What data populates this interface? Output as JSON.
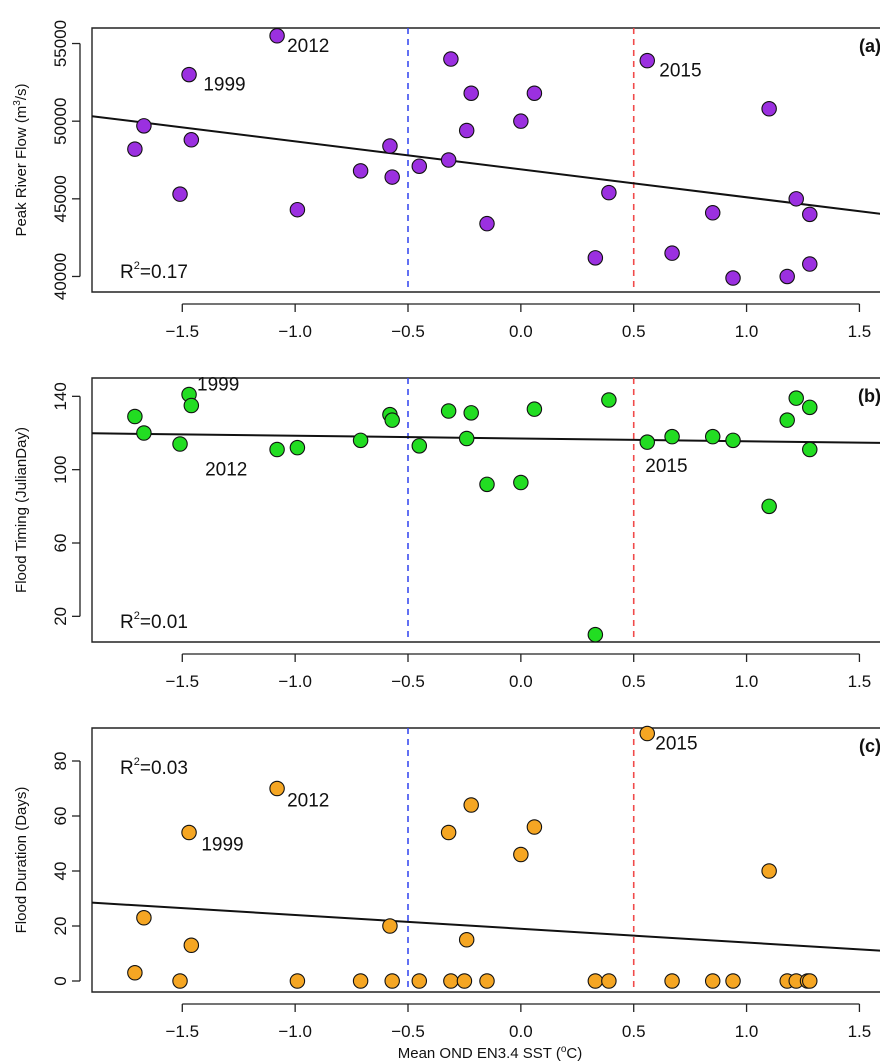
{
  "figure": {
    "xlabel_prefix": "Mean OND EN3.4 SST (",
    "xlabel_sup": "o",
    "xlabel_suffix": "C)"
  },
  "chart_data": [
    {
      "type": "scatter",
      "panel_label": "(a)",
      "ylabel_prefix": "Peak River Flow (m",
      "ylabel_sup": "3",
      "ylabel_suffix": "/s)",
      "xlim": [
        -1.9,
        1.6
      ],
      "ylim": [
        39000,
        56000
      ],
      "xticks": [
        -1.5,
        -1.0,
        -0.5,
        0.0,
        0.5,
        1.0,
        1.5
      ],
      "xtick_labels": [
        "−1.5",
        "−1.0",
        "−0.5",
        "0.0",
        "0.5",
        "1.0",
        "1.5"
      ],
      "yticks": [
        40000,
        45000,
        50000,
        55000
      ],
      "ytick_labels": [
        "40000",
        "45000",
        "50000",
        "55000"
      ],
      "point_color": "#9b30e0",
      "x": [
        -1.71,
        -1.67,
        -1.51,
        -1.47,
        -1.46,
        -1.08,
        -0.99,
        -0.71,
        -0.58,
        -0.57,
        -0.45,
        -0.32,
        -0.31,
        -0.24,
        -0.22,
        -0.15,
        0.0,
        0.06,
        0.33,
        0.39,
        0.56,
        0.67,
        0.85,
        0.94,
        1.1,
        1.18,
        1.22,
        1.28,
        1.28
      ],
      "y": [
        48200,
        49700,
        45300,
        53000,
        48800,
        55500,
        44300,
        46800,
        48400,
        46400,
        47100,
        47500,
        54000,
        49400,
        51800,
        43400,
        50000,
        51800,
        41200,
        45400,
        53900,
        41500,
        44100,
        39900,
        50800,
        40000,
        45000,
        44000,
        40800
      ],
      "regression": {
        "intercept": 46900,
        "slope": -1800
      },
      "r2_prefix": "R",
      "r2_sup": "2",
      "r2_value": "=0.17",
      "annotations": [
        {
          "text": "2012",
          "x": -1.08,
          "y": 55500
        },
        {
          "text": "1999",
          "x": -1.46,
          "y": 53000
        },
        {
          "text": "2015",
          "x": 0.56,
          "y": 53900
        }
      ],
      "vlines": [
        {
          "x": -0.5,
          "color": "#3b4cf0"
        },
        {
          "x": 0.5,
          "color": "#f04a4a"
        }
      ]
    },
    {
      "type": "scatter",
      "panel_label": "(b)",
      "ylabel_prefix": "Flood Timing (JulianDay)",
      "ylabel_sup": "",
      "ylabel_suffix": "",
      "xlim": [
        -1.9,
        1.6
      ],
      "ylim": [
        6,
        150
      ],
      "xticks": [
        -1.5,
        -1.0,
        -0.5,
        0.0,
        0.5,
        1.0,
        1.5
      ],
      "xtick_labels": [
        "−1.5",
        "−1.0",
        "−0.5",
        "0.0",
        "0.5",
        "1.0",
        "1.5"
      ],
      "yticks": [
        20,
        60,
        100,
        140
      ],
      "ytick_labels": [
        "20",
        "60",
        "100",
        "140"
      ],
      "point_color": "#22dd22",
      "x": [
        -1.71,
        -1.67,
        -1.51,
        -1.47,
        -1.46,
        -1.08,
        -0.99,
        -0.71,
        -0.58,
        -0.57,
        -0.45,
        -0.32,
        -0.24,
        -0.22,
        -0.15,
        0.0,
        0.06,
        0.33,
        0.39,
        0.56,
        0.67,
        0.85,
        0.94,
        1.1,
        1.18,
        1.22,
        1.28,
        1.28
      ],
      "y": [
        129,
        120,
        114,
        141,
        135,
        111,
        112,
        116,
        130,
        127,
        113,
        132,
        117,
        131,
        92,
        93,
        133,
        10,
        138,
        115,
        118,
        118,
        116,
        80,
        127,
        139,
        134,
        111
      ],
      "regression": {
        "intercept": 117,
        "slope": -1.5
      },
      "r2_prefix": "R",
      "r2_sup": "2",
      "r2_value": "=0.01",
      "annotations": [
        {
          "text": "1999",
          "x": -1.47,
          "y": 141
        },
        {
          "text": "2012",
          "x": -1.08,
          "y": 111
        },
        {
          "text": "2015",
          "x": 0.56,
          "y": 115
        }
      ],
      "vlines": [
        {
          "x": -0.5,
          "color": "#3b4cf0"
        },
        {
          "x": 0.5,
          "color": "#f04a4a"
        }
      ]
    },
    {
      "type": "scatter",
      "panel_label": "(c)",
      "ylabel_prefix": "Flood Duration (Days)",
      "ylabel_sup": "",
      "ylabel_suffix": "",
      "xlim": [
        -1.9,
        1.6
      ],
      "ylim": [
        -4,
        92
      ],
      "xticks": [
        -1.5,
        -1.0,
        -0.5,
        0.0,
        0.5,
        1.0,
        1.5
      ],
      "xtick_labels": [
        "−1.5",
        "−1.0",
        "−0.5",
        "0.0",
        "0.5",
        "1.0",
        "1.5"
      ],
      "yticks": [
        0,
        20,
        40,
        60,
        80
      ],
      "ytick_labels": [
        "0",
        "20",
        "40",
        "60",
        "80"
      ],
      "point_color": "#f5a623",
      "x": [
        -1.71,
        -1.67,
        -1.51,
        -1.47,
        -1.46,
        -1.08,
        -0.99,
        -0.71,
        -0.58,
        -0.57,
        -0.45,
        -0.32,
        -0.24,
        -0.22,
        -0.15,
        0.0,
        0.06,
        0.33,
        0.39,
        0.56,
        0.67,
        0.85,
        0.94,
        1.1,
        1.18,
        1.22,
        1.27,
        1.28,
        -0.31,
        -0.25
      ],
      "y": [
        3,
        23,
        0,
        54,
        13,
        70,
        0,
        0,
        20,
        0,
        0,
        54,
        15,
        64,
        0,
        46,
        56,
        0,
        0,
        90,
        0,
        0,
        0,
        40,
        0,
        0,
        0,
        0,
        0,
        0
      ],
      "regression": {
        "intercept": 19,
        "slope": -5
      },
      "r2_prefix": "R",
      "r2_sup": "2",
      "r2_value": "=0.03",
      "annotations": [
        {
          "text": "2015",
          "x": 0.56,
          "y": 90
        },
        {
          "text": "2012",
          "x": -1.08,
          "y": 70
        },
        {
          "text": "1999",
          "x": -1.46,
          "y": 54
        }
      ],
      "vlines": [
        {
          "x": -0.5,
          "color": "#3b4cf0"
        },
        {
          "x": 0.5,
          "color": "#f04a4a"
        }
      ]
    }
  ]
}
